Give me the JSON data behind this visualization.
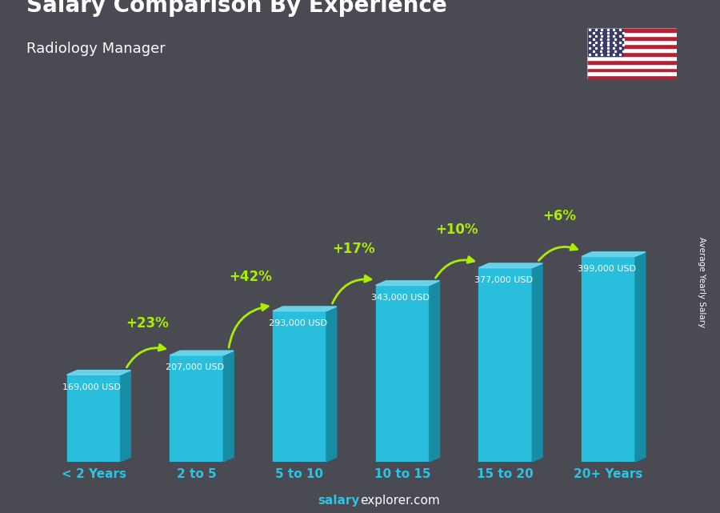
{
  "title": "Salary Comparison By Experience",
  "subtitle": "Radiology Manager",
  "categories": [
    "< 2 Years",
    "2 to 5",
    "5 to 10",
    "10 to 15",
    "15 to 20",
    "20+ Years"
  ],
  "values": [
    169000,
    207000,
    293000,
    343000,
    377000,
    399000
  ],
  "salary_labels": [
    "169,000 USD",
    "207,000 USD",
    "293,000 USD",
    "343,000 USD",
    "377,000 USD",
    "399,000 USD"
  ],
  "pct_changes": [
    "+23%",
    "+42%",
    "+17%",
    "+10%",
    "+6%"
  ],
  "bar_color_face": "#29c5e6",
  "bar_color_dark": "#1590aa",
  "bar_color_top": "#6dd8ef",
  "bg_color": "#4a4a52",
  "title_color": "#ffffff",
  "subtitle_color": "#ffffff",
  "label_color": "#ffffff",
  "pct_color": "#aaee00",
  "xtick_color": "#29c5e6",
  "footer_salary_color": "#29c5e6",
  "footer_explorer_color": "#ffffff",
  "ylabel_text": "Average Yearly Salary",
  "ylabel_color": "#ffffff",
  "footer_salary": "salary",
  "footer_rest": "explorer.com"
}
